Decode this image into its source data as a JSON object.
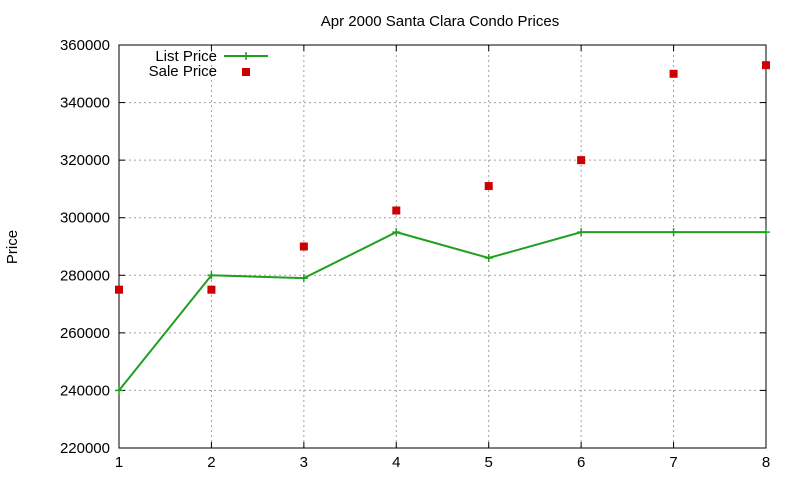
{
  "chart_data": {
    "type": "line",
    "title": "Apr 2000 Santa Clara Condo Prices",
    "xlabel": "",
    "ylabel": "Price",
    "x": [
      1,
      2,
      3,
      4,
      5,
      6,
      7,
      8
    ],
    "xlim": [
      1,
      8
    ],
    "ylim": [
      220000,
      360000
    ],
    "xticks": [
      1,
      2,
      3,
      4,
      5,
      6,
      7,
      8
    ],
    "yticks": [
      220000,
      240000,
      260000,
      280000,
      300000,
      320000,
      340000,
      360000
    ],
    "grid": true,
    "legend_position": "top-left",
    "series": [
      {
        "name": "List Price",
        "style": "linespoints",
        "color": "#1f9f1f",
        "values": [
          240000,
          280000,
          279000,
          295000,
          286000,
          295000,
          295000,
          295000
        ]
      },
      {
        "name": "Sale Price",
        "style": "points",
        "color": "#cc0000",
        "values": [
          275000,
          275000,
          290000,
          302500,
          311000,
          320000,
          350000,
          353000
        ]
      }
    ]
  }
}
